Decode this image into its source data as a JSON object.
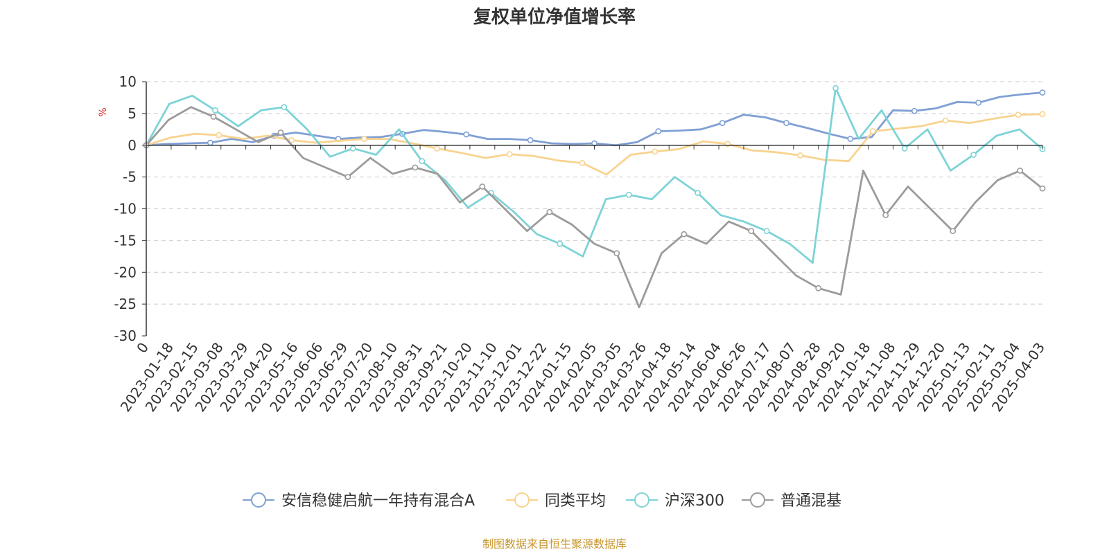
{
  "chart_data": {
    "type": "line",
    "title": "复权单位净值增长率",
    "ylabel": "%",
    "ylim": [
      -30,
      10
    ],
    "yticks": [
      10,
      5,
      0,
      -5,
      -10,
      -15,
      -20,
      -25,
      -30
    ],
    "xticks": [
      "0",
      "2023-01-18",
      "2023-02-15",
      "2023-03-08",
      "2023-03-29",
      "2023-04-20",
      "2023-05-16",
      "2023-06-06",
      "2023-06-29",
      "2023-07-20",
      "2023-08-10",
      "2023-08-31",
      "2023-09-21",
      "2023-10-20",
      "2023-11-10",
      "2023-12-01",
      "2023-12-22",
      "2024-01-15",
      "2024-02-05",
      "2024-03-05",
      "2024-03-26",
      "2024-04-18",
      "2024-05-14",
      "2024-06-04",
      "2024-06-26",
      "2024-07-17",
      "2024-08-07",
      "2024-08-28",
      "2024-09-20",
      "2024-10-18",
      "2024-11-08",
      "2024-11-29",
      "2024-12-20",
      "2025-01-13",
      "2025-02-11",
      "2025-03-04",
      "2025-04-03"
    ],
    "grid": "horizontal-dashed",
    "legend_position": "bottom",
    "series": [
      {
        "name": "安信稳健启航一年持有混合A",
        "color": "#7f9fd4",
        "values": [
          0,
          0.2,
          0.3,
          0.4,
          1.0,
          0.5,
          1.5,
          2.0,
          1.5,
          1.0,
          1.2,
          1.3,
          1.8,
          2.4,
          2.1,
          1.7,
          1.0,
          1.0,
          0.8,
          0.3,
          0.2,
          0.3,
          0.0,
          0.5,
          2.2,
          2.3,
          2.5,
          3.5,
          4.8,
          4.4,
          3.5,
          2.7,
          1.8,
          1.0,
          1.3,
          5.5,
          5.4,
          5.8,
          6.8,
          6.7,
          7.6,
          8.0,
          8.3
        ]
      },
      {
        "name": "同类平均",
        "color": "#f8d38f",
        "values": [
          0,
          1.2,
          1.8,
          1.6,
          1.0,
          1.5,
          0.8,
          0.4,
          0.7,
          1.0,
          1.0,
          0.3,
          -0.5,
          -1.2,
          -2.0,
          -1.4,
          -1.7,
          -2.4,
          -2.8,
          -4.6,
          -1.5,
          -1.0,
          -0.6,
          0.6,
          0.2,
          -0.8,
          -1.1,
          -1.6,
          -2.3,
          -2.5,
          2.2,
          2.6,
          3.0,
          3.9,
          3.5,
          4.2,
          4.8,
          4.9
        ]
      },
      {
        "name": "沪深300",
        "color": "#7dd3d6",
        "values": [
          0,
          6.5,
          7.8,
          5.5,
          3.0,
          5.5,
          6.0,
          2.5,
          -1.8,
          -0.5,
          -1.5,
          2.5,
          -2.5,
          -5.5,
          -9.8,
          -7.5,
          -10.5,
          -14.0,
          -15.5,
          -17.5,
          -8.5,
          -7.8,
          -8.5,
          -5.0,
          -7.5,
          -11.0,
          -12.0,
          -13.5,
          -15.5,
          -18.5,
          9.0,
          1.0,
          5.5,
          -0.5,
          2.5,
          -4.0,
          -1.5,
          1.5,
          2.5,
          -0.6
        ]
      },
      {
        "name": "普通混基",
        "color": "#9b9b9b",
        "values": [
          0,
          4.0,
          6.0,
          4.5,
          2.5,
          0.5,
          2.0,
          -2.0,
          -3.5,
          -5.0,
          -2.0,
          -4.5,
          -3.5,
          -4.5,
          -9.0,
          -6.5,
          -10.0,
          -13.5,
          -10.5,
          -12.5,
          -15.5,
          -17.0,
          -25.5,
          -17.0,
          -14.0,
          -15.5,
          -12.0,
          -13.5,
          -17.0,
          -20.5,
          -22.5,
          -23.5,
          -4.0,
          -11.0,
          -6.5,
          -10.0,
          -13.5,
          -9.0,
          -5.5,
          -4.0,
          -6.8
        ]
      }
    ],
    "source_note": "制图数据来自恒生聚源数据库"
  }
}
